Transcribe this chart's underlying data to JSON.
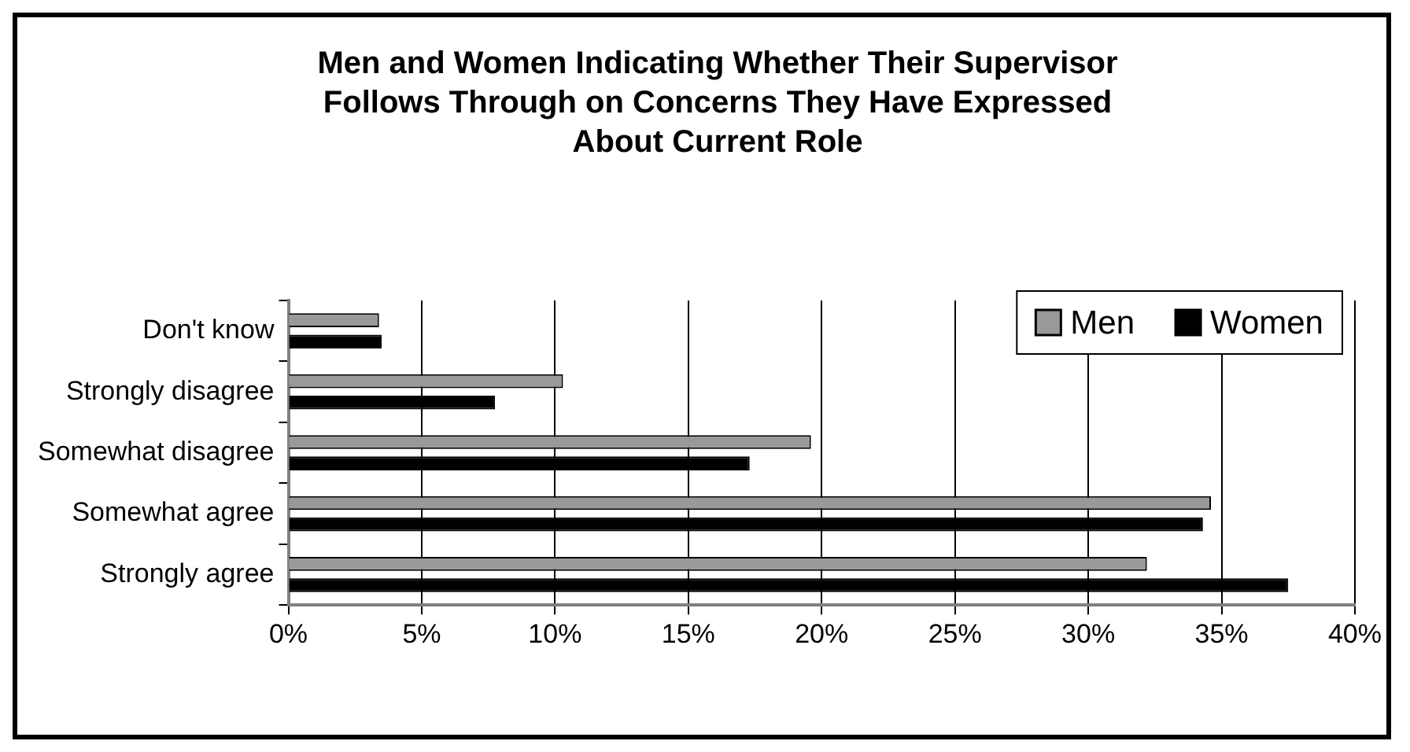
{
  "chart_data": {
    "type": "bar",
    "orientation": "horizontal",
    "title": "Men and Women Indicating Whether Their Supervisor Follows Through on Concerns They Have Expressed About Current Role",
    "categories": [
      "Don't know",
      "Strongly disagree",
      "Somewhat disagree",
      "Somewhat agree",
      "Strongly agree"
    ],
    "series": [
      {
        "name": "Men",
        "color": "#999999",
        "values": [
          3.4,
          10.3,
          19.6,
          34.6,
          32.2
        ]
      },
      {
        "name": "Women",
        "color": "#000000",
        "values": [
          3.5,
          7.75,
          17.3,
          34.3,
          37.5
        ]
      }
    ],
    "xlim": [
      0,
      40
    ],
    "xticks": [
      {
        "value": 0,
        "label": "0%"
      },
      {
        "value": 5,
        "label": "5%"
      },
      {
        "value": 10,
        "label": "10%"
      },
      {
        "value": 15,
        "label": "15%"
      },
      {
        "value": 20,
        "label": "20%"
      },
      {
        "value": 25,
        "label": "25%"
      },
      {
        "value": 30,
        "label": "30%"
      },
      {
        "value": 35,
        "label": "35%"
      },
      {
        "value": 40,
        "label": "40%"
      }
    ],
    "grid": "x",
    "legend": "top right"
  }
}
